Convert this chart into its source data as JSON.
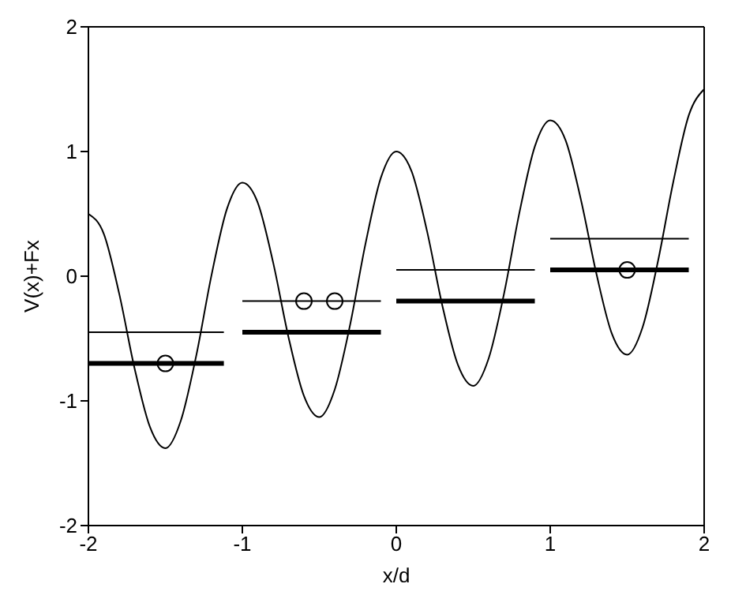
{
  "chart_data": {
    "type": "line",
    "xlabel": "x/d",
    "ylabel": "V(x)+Fx",
    "xlim": [
      -2,
      2
    ],
    "ylim": [
      -2,
      2
    ],
    "xticks": [
      -2,
      -1,
      0,
      1,
      2
    ],
    "yticks": [
      -2,
      -1,
      0,
      1,
      2
    ],
    "marker": "none",
    "line_style": "solid",
    "series": [
      {
        "color": "#000000",
        "x": [
          -2,
          -1.9,
          -1.8,
          -1.7,
          -1.6,
          -1.5,
          -1.4,
          -1.3,
          -1.2,
          -1.1,
          -1,
          -0.9,
          -0.8,
          -0.7,
          -0.6,
          -0.5,
          -0.4,
          -0.3,
          -0.2,
          -0.1,
          0,
          0.1,
          0.2,
          0.3,
          0.4,
          0.5,
          0.6,
          0.7,
          0.8,
          0.9,
          1,
          1.1,
          1.2,
          1.3,
          1.4,
          1.5,
          1.6,
          1.7,
          1.8,
          1.9,
          2
        ],
        "values": [
          0.5,
          0.34,
          -0.14,
          -0.74,
          -1.21,
          -1.38,
          -1.16,
          -0.64,
          0.01,
          0.54,
          0.75,
          0.59,
          0.11,
          -0.49,
          -0.96,
          -1.13,
          -0.91,
          -0.39,
          0.26,
          0.79,
          1,
          0.84,
          0.36,
          -0.24,
          -0.71,
          -0.88,
          -0.66,
          -0.14,
          0.51,
          1.04,
          1.25,
          1.09,
          0.61,
          0.02,
          -0.46,
          -0.63,
          -0.41,
          0.12,
          0.76,
          1.29,
          1.5
        ]
      },
      {
        "color": "#000000",
        "x": [
          -2,
          -1.12
        ],
        "values": [
          -0.45,
          -0.45
        ]
      },
      {
        "color": "#000000",
        "x": [
          -2,
          -1.12
        ],
        "values": [
          -0.7,
          -0.7
        ]
      },
      {
        "color": "#000000",
        "x": [
          -1,
          -0.1
        ],
        "values": [
          -0.2,
          -0.2
        ]
      },
      {
        "color": "#000000",
        "x": [
          -1,
          -0.1
        ],
        "values": [
          -0.45,
          -0.45
        ]
      },
      {
        "color": "#000000",
        "x": [
          0,
          0.9
        ],
        "values": [
          0.05,
          0.05
        ]
      },
      {
        "color": "#000000",
        "x": [
          0,
          0.9
        ],
        "values": [
          -0.2,
          -0.2
        ]
      },
      {
        "color": "#000000",
        "x": [
          1,
          1.9
        ],
        "values": [
          0.3,
          0.3
        ]
      },
      {
        "color": "#000000",
        "x": [
          1,
          1.9
        ],
        "values": [
          0.05,
          0.05
        ]
      },
      {
        "type": "scatter",
        "color": "#000000",
        "marker": "circle",
        "x": [
          -1.5,
          -0.6,
          -0.4,
          1.5
        ],
        "values": [
          -0.7,
          -0.2,
          -0.2,
          0.05
        ]
      }
    ]
  }
}
